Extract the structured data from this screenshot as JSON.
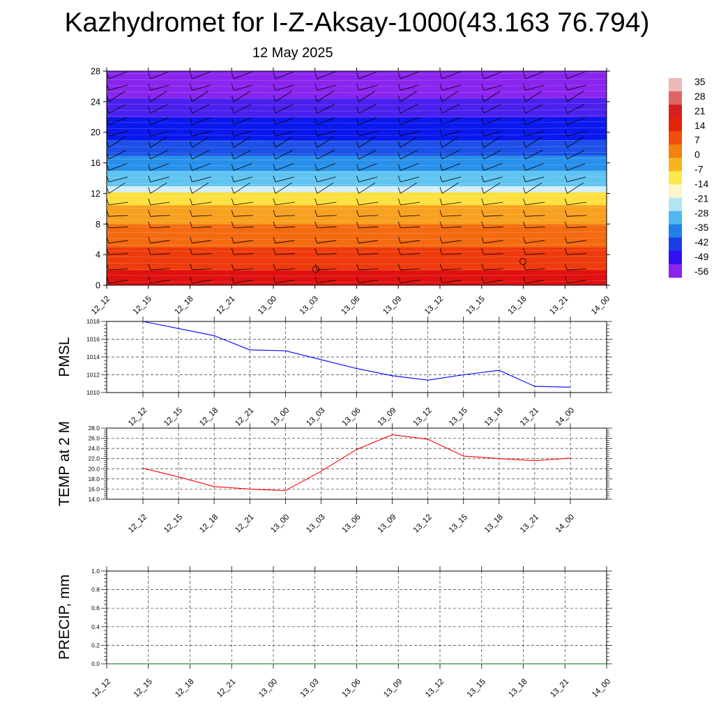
{
  "title": "Kazhydromet for I-Z-Aksay-1000(43.163 76.794)",
  "subtitle": "12 May 2025",
  "colorbar": {
    "labels": [
      "35",
      "28",
      "21",
      "14",
      "7",
      "0",
      "-7",
      "-14",
      "-21",
      "-28",
      "-35",
      "-42",
      "-49",
      "-56"
    ],
    "colors": [
      "#ecb8b8",
      "#e06464",
      "#d62020",
      "#e4240a",
      "#f0500a",
      "#f4800e",
      "#f8b420",
      "#fce850",
      "#fcf6c8",
      "#b4e4f4",
      "#50b8f0",
      "#2080e8",
      "#1c3ce4",
      "#3010f0",
      "#8a24ee"
    ]
  },
  "chart_data": [
    {
      "type": "heatmap",
      "name": "cross-section",
      "y_ticks": [
        "0",
        "4",
        "8",
        "12",
        "16",
        "20",
        "24",
        "28"
      ],
      "ylim": [
        0,
        28
      ],
      "x_ticks": [
        "12_12",
        "12_15",
        "12_18",
        "12_21",
        "13_00",
        "13_03",
        "13_06",
        "13_09",
        "13_12",
        "13_15",
        "13_18",
        "13_21",
        "14_00"
      ],
      "layers": [
        {
          "y": [
            0,
            2
          ],
          "color": "#e01010"
        },
        {
          "y": [
            2,
            5
          ],
          "color": "#ee3a0c"
        },
        {
          "y": [
            5,
            8
          ],
          "color": "#f46a10"
        },
        {
          "y": [
            8,
            10.5
          ],
          "color": "#f8a020"
        },
        {
          "y": [
            10.5,
            12.2
          ],
          "color": "#fce040"
        },
        {
          "y": [
            12.2,
            13
          ],
          "color": "#d4eef8"
        },
        {
          "y": [
            13,
            15
          ],
          "color": "#60c4f0"
        },
        {
          "y": [
            15,
            17
          ],
          "color": "#2890ea"
        },
        {
          "y": [
            17,
            19
          ],
          "color": "#1c50e6"
        },
        {
          "y": [
            19,
            22
          ],
          "color": "#0a18ee"
        },
        {
          "y": [
            22,
            24.5
          ],
          "color": "#4a20ee"
        },
        {
          "y": [
            24.5,
            28
          ],
          "color": "#8a24ee"
        }
      ],
      "wind_levels": [
        0.3,
        2,
        4,
        5.5,
        7.5,
        9,
        10.5,
        12,
        13.5,
        15,
        16.5,
        18,
        19.5,
        21,
        22.5,
        24,
        25.5,
        27
      ]
    },
    {
      "type": "line",
      "ylabel": "PMSL",
      "x": [
        "12_12",
        "12_15",
        "12_18",
        "12_21",
        "13_00",
        "13_03",
        "13_06",
        "13_09",
        "13_12",
        "13_15",
        "13_18",
        "13_21",
        "14_00"
      ],
      "y_ticks": [
        "1010",
        "1012",
        "1014",
        "1016",
        "1018"
      ],
      "ylim": [
        1010,
        1018
      ],
      "series": [
        {
          "values": [
            1018.0,
            1017.2,
            1016.4,
            1014.8,
            1014.7,
            1013.7,
            1012.7,
            1011.9,
            1011.4,
            1012.0,
            1012.5,
            1010.7,
            1010.6
          ],
          "color": "#0000ff"
        }
      ]
    },
    {
      "type": "line",
      "ylabel": "TEMP at 2 M",
      "x": [
        "12_12",
        "12_15",
        "12_18",
        "12_21",
        "13_00",
        "13_03",
        "13_06",
        "13_09",
        "13_12",
        "13_15",
        "13_18",
        "13_21",
        "14_00"
      ],
      "y_ticks": [
        "14.0",
        "16.0",
        "18.0",
        "20.0",
        "22.0",
        "24.0",
        "26.0",
        "28.0"
      ],
      "ylim": [
        14,
        28
      ],
      "series": [
        {
          "values": [
            20.1,
            18.4,
            16.5,
            16.0,
            15.7,
            19.5,
            23.8,
            26.7,
            25.8,
            22.5,
            22.0,
            21.6,
            22.1
          ],
          "color": "#ff0000"
        }
      ]
    },
    {
      "type": "line",
      "ylabel": "PRECIP, mm",
      "x_ticks": [
        "12_12",
        "12_15",
        "12_18",
        "12_21",
        "13_00",
        "13_03",
        "13_06",
        "13_09",
        "13_12",
        "13_15",
        "13_18",
        "13_21",
        "14_00"
      ],
      "y_ticks": [
        "0.0",
        "0.2",
        "0.4",
        "0.6",
        "0.8",
        "1.0"
      ],
      "ylim": [
        0,
        1
      ],
      "series": [
        {
          "values": [
            0,
            0,
            0,
            0,
            0,
            0,
            0,
            0,
            0,
            0,
            0,
            0,
            0
          ],
          "color": "#006400"
        }
      ]
    }
  ]
}
